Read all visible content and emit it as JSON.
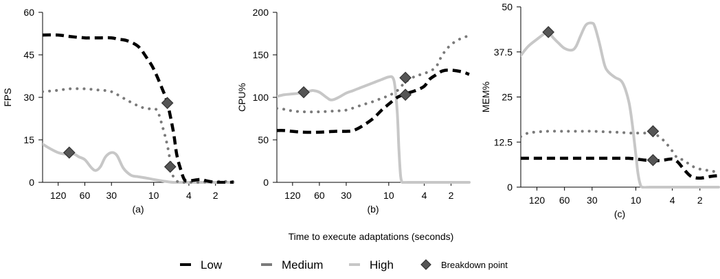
{
  "figure": {
    "shared_xlabel": "Time to execute adaptations (seconds)"
  },
  "colors": {
    "low": "#000000",
    "medium": "#7a7a7a",
    "high": "#c7c7c7",
    "breakdown_fill": "#555555",
    "breakdown_stroke": "#333333",
    "axis": "#000000"
  },
  "legend": {
    "placement": "bottom-center",
    "items": [
      {
        "key": "low",
        "label": "Low"
      },
      {
        "key": "medium",
        "label": "Medium"
      },
      {
        "key": "high",
        "label": "High"
      },
      {
        "key": "breakdown",
        "label": "Breakdown point"
      }
    ]
  },
  "chart_data": [
    {
      "type": "line",
      "panel_label": "(a)",
      "ylabel": "FPS",
      "ylim": [
        0,
        60
      ],
      "yticks": [
        0,
        15,
        30,
        45,
        60
      ],
      "ytick_labels": [
        "0",
        "15",
        "30",
        "45",
        "60"
      ],
      "x_scale": "log",
      "xlim": [
        180,
        1.25
      ],
      "xticks": [
        120,
        60,
        30,
        10,
        4,
        2
      ],
      "xtick_labels": [
        "120",
        "60",
        "30",
        "10",
        "4",
        "2"
      ],
      "grid": false,
      "series": [
        {
          "key": "low",
          "name": "Low",
          "style": "dashed",
          "points": [
            [
              180,
              52
            ],
            [
              120,
              52
            ],
            [
              90,
              51.5
            ],
            [
              60,
              51
            ],
            [
              40,
              51
            ],
            [
              30,
              51
            ],
            [
              25,
              50.5
            ],
            [
              20,
              50
            ],
            [
              15,
              48
            ],
            [
              12,
              44
            ],
            [
              10,
              40
            ],
            [
              8,
              33
            ],
            [
              7,
              28
            ],
            [
              6,
              18
            ],
            [
              5.5,
              10
            ],
            [
              5,
              5
            ],
            [
              4.5,
              1
            ],
            [
              4,
              0.5
            ],
            [
              3,
              1
            ],
            [
              2.5,
              0.5
            ],
            [
              2,
              0
            ],
            [
              1.5,
              0
            ],
            [
              1.25,
              0
            ]
          ]
        },
        {
          "key": "medium",
          "name": "Medium",
          "style": "dotted",
          "points": [
            [
              180,
              32
            ],
            [
              120,
              32.5
            ],
            [
              90,
              33
            ],
            [
              60,
              33
            ],
            [
              40,
              32.5
            ],
            [
              30,
              32
            ],
            [
              20,
              29
            ],
            [
              15,
              27
            ],
            [
              12,
              26
            ],
            [
              10,
              26
            ],
            [
              9,
              25
            ],
            [
              8,
              20
            ],
            [
              7,
              13
            ],
            [
              6.3,
              5
            ],
            [
              6,
              2
            ],
            [
              5.5,
              0.5
            ],
            [
              5,
              0
            ],
            [
              4,
              0
            ],
            [
              3,
              0
            ],
            [
              2,
              0.3
            ],
            [
              1.5,
              0.3
            ],
            [
              1.25,
              0.3
            ]
          ]
        },
        {
          "key": "high",
          "name": "High",
          "style": "solid",
          "points": [
            [
              180,
              13.5
            ],
            [
              150,
              12
            ],
            [
              120,
              10.5
            ],
            [
              100,
              10
            ],
            [
              80,
              10
            ],
            [
              70,
              9
            ],
            [
              60,
              8
            ],
            [
              50,
              5
            ],
            [
              45,
              4.2
            ],
            [
              40,
              5.5
            ],
            [
              35,
              9
            ],
            [
              30,
              10.5
            ],
            [
              26,
              9.5
            ],
            [
              22,
              5
            ],
            [
              18,
              2.5
            ],
            [
              15,
              2
            ],
            [
              12,
              1.5
            ],
            [
              10,
              1
            ],
            [
              8,
              0.5
            ],
            [
              6,
              0
            ],
            [
              4,
              0
            ],
            [
              3,
              0
            ],
            [
              2,
              0
            ],
            [
              1.5,
              0
            ],
            [
              1.25,
              0
            ]
          ]
        }
      ],
      "breakdown_points": [
        [
          90,
          10.5
        ],
        [
          7,
          28
        ],
        [
          6.5,
          5.5
        ]
      ]
    },
    {
      "type": "line",
      "panel_label": "(b)",
      "ylabel": "CPU%",
      "ylim": [
        0,
        200
      ],
      "yticks": [
        0,
        50,
        100,
        150,
        200
      ],
      "ytick_labels": [
        "0",
        "50",
        "100",
        "150",
        "200"
      ],
      "x_scale": "log",
      "xlim": [
        180,
        1.25
      ],
      "xticks": [
        120,
        60,
        30,
        10,
        4,
        2
      ],
      "xtick_labels": [
        "120",
        "60",
        "30",
        "10",
        "4",
        "2"
      ],
      "grid": false,
      "series": [
        {
          "key": "low",
          "name": "Low",
          "style": "dashed",
          "points": [
            [
              180,
              61
            ],
            [
              150,
              61
            ],
            [
              120,
              60
            ],
            [
              90,
              59
            ],
            [
              60,
              59
            ],
            [
              40,
              60
            ],
            [
              30,
              60
            ],
            [
              25,
              61
            ],
            [
              20,
              66
            ],
            [
              15,
              75
            ],
            [
              12,
              85
            ],
            [
              10,
              92
            ],
            [
              8,
              100
            ],
            [
              6.5,
              104
            ],
            [
              5,
              108
            ],
            [
              4,
              113
            ],
            [
              3.5,
              121
            ],
            [
              3,
              126
            ],
            [
              2.5,
              131
            ],
            [
              2,
              132
            ],
            [
              1.5,
              130
            ],
            [
              1.25,
              127
            ]
          ]
        },
        {
          "key": "medium",
          "name": "Medium",
          "style": "dotted",
          "points": [
            [
              180,
              87
            ],
            [
              150,
              86
            ],
            [
              120,
              84
            ],
            [
              90,
              83
            ],
            [
              60,
              83
            ],
            [
              40,
              84
            ],
            [
              30,
              85
            ],
            [
              20,
              91
            ],
            [
              15,
              95
            ],
            [
              12,
              99
            ],
            [
              10,
              102
            ],
            [
              8,
              108
            ],
            [
              6.5,
              118
            ],
            [
              5,
              125
            ],
            [
              4,
              128
            ],
            [
              3,
              135
            ],
            [
              2.5,
              150
            ],
            [
              2,
              162
            ],
            [
              1.5,
              170
            ],
            [
              1.25,
              172
            ]
          ]
        },
        {
          "key": "high",
          "name": "High",
          "style": "solid",
          "points": [
            [
              180,
              101
            ],
            [
              150,
              103
            ],
            [
              120,
              104
            ],
            [
              100,
              105
            ],
            [
              80,
              107
            ],
            [
              70,
              108
            ],
            [
              60,
              106
            ],
            [
              50,
              100
            ],
            [
              45,
              97
            ],
            [
              40,
              98
            ],
            [
              35,
              101
            ],
            [
              30,
              105
            ],
            [
              25,
              108
            ],
            [
              20,
              112
            ],
            [
              15,
              117
            ],
            [
              12,
              121
            ],
            [
              10,
              124
            ],
            [
              9,
              123
            ],
            [
              8.5,
              112
            ],
            [
              8,
              80
            ],
            [
              7.7,
              40
            ],
            [
              7.4,
              10
            ],
            [
              7.2,
              2
            ],
            [
              7,
              0
            ],
            [
              6,
              0
            ],
            [
              4,
              0
            ],
            [
              3,
              0
            ],
            [
              2,
              0
            ],
            [
              1.5,
              0
            ],
            [
              1.25,
              0
            ]
          ]
        }
      ],
      "breakdown_points": [
        [
          90,
          106
        ],
        [
          6.5,
          123
        ],
        [
          6.5,
          103
        ]
      ]
    },
    {
      "type": "line",
      "panel_label": "(c)",
      "ylabel": "MEM%",
      "ylim": [
        0,
        50
      ],
      "yticks": [
        0,
        12.5,
        25,
        37.5,
        50
      ],
      "ytick_labels": [
        "0",
        "12.5",
        "25",
        "37.5",
        "50"
      ],
      "x_scale": "log",
      "xlim": [
        180,
        1.25
      ],
      "xticks": [
        120,
        60,
        30,
        10,
        4,
        2
      ],
      "xtick_labels": [
        "120",
        "60",
        "30",
        "10",
        "4",
        "2"
      ],
      "grid": false,
      "series": [
        {
          "key": "low",
          "name": "Low",
          "style": "dashed",
          "points": [
            [
              180,
              8
            ],
            [
              150,
              8
            ],
            [
              120,
              8
            ],
            [
              90,
              8
            ],
            [
              60,
              8
            ],
            [
              40,
              8
            ],
            [
              30,
              8
            ],
            [
              20,
              8
            ],
            [
              15,
              8
            ],
            [
              12,
              8
            ],
            [
              10,
              7.8
            ],
            [
              8,
              7.5
            ],
            [
              6.5,
              7.3
            ],
            [
              5,
              7.5
            ],
            [
              4,
              7.8
            ],
            [
              3.5,
              7
            ],
            [
              3,
              5
            ],
            [
              2.5,
              3
            ],
            [
              2,
              2.5
            ],
            [
              1.5,
              3
            ],
            [
              1.25,
              3.2
            ]
          ]
        },
        {
          "key": "medium",
          "name": "Medium",
          "style": "dotted",
          "points": [
            [
              180,
              14
            ],
            [
              150,
              15
            ],
            [
              120,
              15.3
            ],
            [
              90,
              15.5
            ],
            [
              60,
              15.5
            ],
            [
              40,
              15.5
            ],
            [
              30,
              15.5
            ],
            [
              20,
              15.3
            ],
            [
              15,
              15.2
            ],
            [
              12,
              15
            ],
            [
              10,
              15
            ],
            [
              8,
              15
            ],
            [
              6.5,
              15
            ],
            [
              5,
              13
            ],
            [
              4,
              10
            ],
            [
              3.5,
              8
            ],
            [
              3,
              7.5
            ],
            [
              2.5,
              6
            ],
            [
              2,
              5
            ],
            [
              1.5,
              4.5
            ],
            [
              1.25,
              4
            ]
          ]
        },
        {
          "key": "high",
          "name": "High",
          "style": "solid",
          "points": [
            [
              180,
              36.5
            ],
            [
              150,
              39
            ],
            [
              120,
              41
            ],
            [
              100,
              42.5
            ],
            [
              90,
              43
            ],
            [
              80,
              41.5
            ],
            [
              70,
              40
            ],
            [
              60,
              38.5
            ],
            [
              50,
              38
            ],
            [
              45,
              39
            ],
            [
              40,
              42
            ],
            [
              35,
              45
            ],
            [
              30,
              45.5
            ],
            [
              28,
              44.5
            ],
            [
              25,
              40
            ],
            [
              22,
              34
            ],
            [
              20,
              32
            ],
            [
              17,
              30.5
            ],
            [
              14,
              29
            ],
            [
              12,
              24
            ],
            [
              11,
              18
            ],
            [
              10,
              9
            ],
            [
              9.5,
              4
            ],
            [
              9,
              1
            ],
            [
              8.5,
              0
            ],
            [
              7,
              0
            ],
            [
              5,
              0
            ],
            [
              4,
              0
            ],
            [
              3,
              0
            ],
            [
              2,
              0
            ],
            [
              1.5,
              0
            ],
            [
              1.25,
              0
            ]
          ]
        }
      ],
      "breakdown_points": [
        [
          90,
          43
        ],
        [
          6.5,
          15.5
        ],
        [
          6.5,
          7.5
        ]
      ]
    }
  ]
}
